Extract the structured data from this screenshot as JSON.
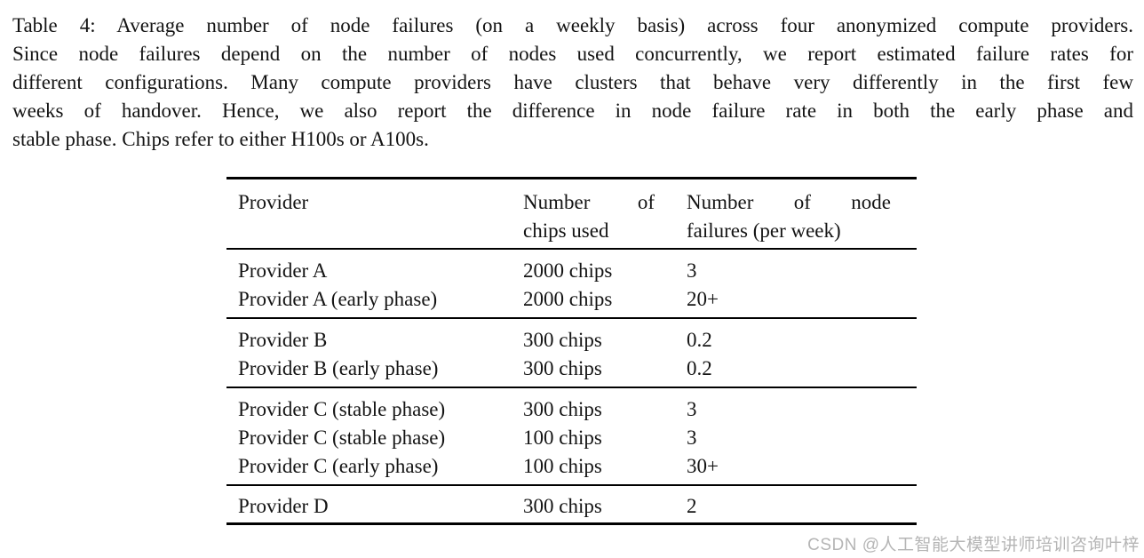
{
  "caption": {
    "lines": [
      "Table 4: Average number of node failures (on a weekly basis) across four anonymized compute providers.",
      "Since node failures depend on the number of nodes used concurrently, we report estimated failure rates for",
      "different configurations. Many compute providers have clusters that behave very differently in the first few",
      "weeks of handover. Hence, we also report the difference in node failure rate in both the early phase and",
      "stable phase. Chips refer to either H100s or A100s."
    ]
  },
  "table": {
    "headers": {
      "col1": "Provider",
      "col2_line1": "Number of",
      "col2_line2": "chips used",
      "col3_line1": "Number of node",
      "col3_line2": "failures (per week)"
    },
    "groups": [
      {
        "rows": [
          {
            "provider": "Provider A",
            "chips": "2000 chips",
            "failures": "3"
          },
          {
            "provider": "Provider A (early phase)",
            "chips": "2000 chips",
            "failures": "20+"
          }
        ]
      },
      {
        "rows": [
          {
            "provider": "Provider B",
            "chips": "300 chips",
            "failures": "0.2"
          },
          {
            "provider": "Provider B (early phase)",
            "chips": "300 chips",
            "failures": "0.2"
          }
        ]
      },
      {
        "rows": [
          {
            "provider": "Provider C (stable phase)",
            "chips": "300 chips",
            "failures": "3"
          },
          {
            "provider": "Provider C (stable phase)",
            "chips": "100 chips",
            "failures": "3"
          },
          {
            "provider": "Provider C (early phase)",
            "chips": "100 chips",
            "failures": "30+"
          }
        ]
      },
      {
        "rows": [
          {
            "provider": "Provider D",
            "chips": "300 chips",
            "failures": "2"
          }
        ]
      }
    ]
  },
  "watermark": {
    "text": "CSDN @人工智能大模型讲师培训咨询叶梓",
    "color": "#b5b5b5"
  },
  "colors": {
    "text": "#141414",
    "background": "#ffffff",
    "rule": "#000000"
  }
}
